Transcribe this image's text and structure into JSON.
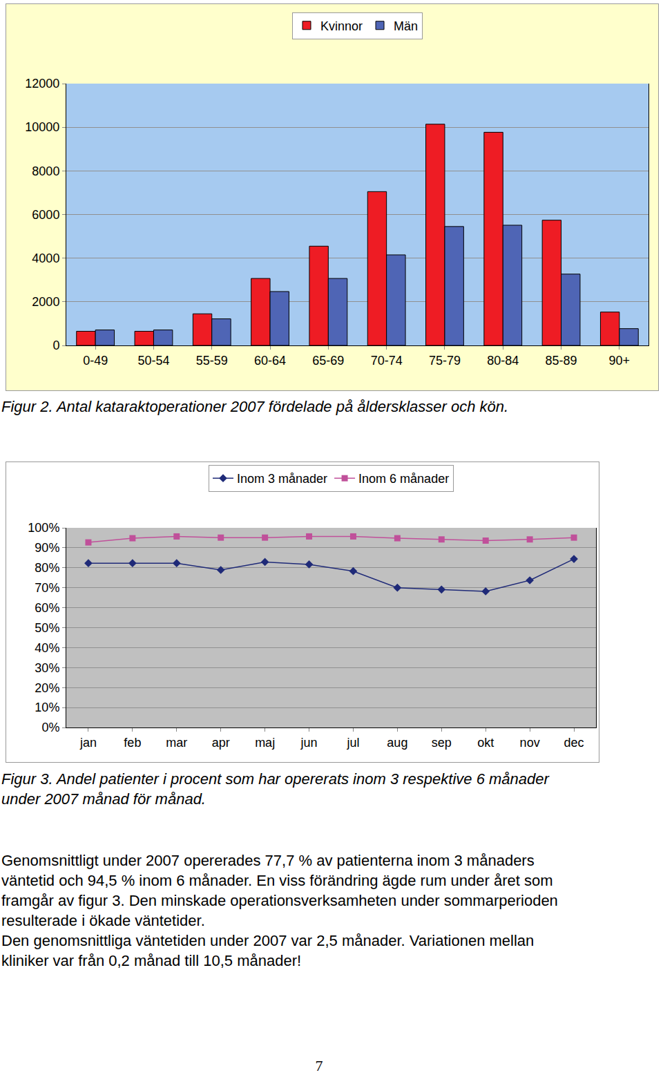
{
  "chart_data": [
    {
      "type": "bar",
      "categories": [
        "0-49",
        "50-54",
        "55-59",
        "60-64",
        "65-69",
        "70-74",
        "75-79",
        "80-84",
        "85-89",
        "90+"
      ],
      "series": [
        {
          "name": "Kvinnor",
          "color": "#ee1c24",
          "values": [
            650,
            650,
            1450,
            3070,
            4550,
            7050,
            10140,
            9770,
            5740,
            1530
          ]
        },
        {
          "name": "Män",
          "color": "#4f65b5",
          "values": [
            710,
            710,
            1220,
            2470,
            3070,
            4150,
            5450,
            5510,
            3270,
            770
          ]
        }
      ],
      "ylim": [
        0,
        12000
      ],
      "yticks": [
        0,
        2000,
        4000,
        6000,
        8000,
        10000,
        12000
      ],
      "grid": true,
      "legend": "top"
    },
    {
      "type": "line",
      "categories": [
        "jan",
        "feb",
        "mar",
        "apr",
        "maj",
        "jun",
        "jul",
        "aug",
        "sep",
        "okt",
        "nov",
        "dec"
      ],
      "series": [
        {
          "name": "Inom 3 månader",
          "color": "#1f2a78",
          "marker": "diamond",
          "values": [
            82.3,
            82.3,
            82.3,
            78.9,
            82.9,
            81.7,
            78.3,
            70.0,
            69.1,
            68.2,
            73.7,
            84.4
          ]
        },
        {
          "name": "Inom 6 månader",
          "color": "#c0509a",
          "marker": "square",
          "values": [
            92.7,
            94.8,
            95.7,
            95.1,
            95.1,
            95.7,
            95.7,
            94.8,
            94.2,
            93.6,
            94.2,
            95.1
          ]
        }
      ],
      "ylim": [
        0,
        100
      ],
      "yticks": [
        {
          "value": 0,
          "label": "0%"
        },
        {
          "value": 10,
          "label": "10%"
        },
        {
          "value": 20,
          "label": "20%"
        },
        {
          "value": 30,
          "label": "30%"
        },
        {
          "value": 40,
          "label": "40%"
        },
        {
          "value": 50,
          "label": "50%"
        },
        {
          "value": 60,
          "label": "60%"
        },
        {
          "value": 70,
          "label": "70%"
        },
        {
          "value": 80,
          "label": "80%"
        },
        {
          "value": 90,
          "label": "90%"
        },
        {
          "value": 100,
          "label": "100%"
        }
      ],
      "grid": true,
      "legend": "top"
    }
  ],
  "captions": [
    [
      "Figur 2. Antal kataraktoperationer 2007 fördelade på åldersklasser och kön."
    ],
    [
      "Figur 3. Andel patienter i procent som har opererats inom 3 respektive 6 månader",
      "under 2007 månad för månad."
    ]
  ],
  "paragraphs": [
    [
      "Genomsnittligt under 2007 opererades 77,7 % av patienterna inom 3 månaders",
      "väntetid och 94,5 % inom 6 månader.  En viss förändring ägde rum under året som",
      "framgår av figur 3. Den minskade operationsverksamheten under sommarperioden",
      "resulterade i ökade väntetider."
    ],
    [
      "Den genomsnittliga väntetiden under 2007 var 2,5 månader. Variationen mellan",
      "kliniker var från 0,2 månad till 10,5 månader!"
    ]
  ],
  "page_number": "7"
}
